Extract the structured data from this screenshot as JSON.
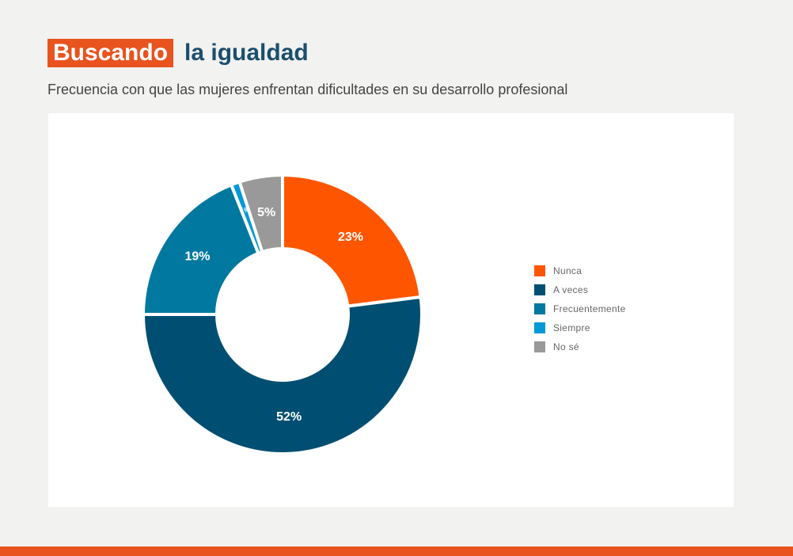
{
  "header": {
    "title_highlight": "Buscando",
    "title_rest": "la igualdad",
    "subtitle": "Frecuencia con que las mujeres enfrentan dificultades en su desarrollo profesional"
  },
  "chart_data": {
    "type": "donut",
    "title": "Frecuencia con que las mujeres enfrentan dificultades en su desarrollo profesional",
    "unit": "%",
    "legend_position": "right",
    "slices": [
      {
        "label": "Nunca",
        "value": 23,
        "display": "23%",
        "color": "#fe5600"
      },
      {
        "label": "A veces",
        "value": 52,
        "display": "52%",
        "color": "#004f72"
      },
      {
        "label": "Frecuentemente",
        "value": 19,
        "display": "19%",
        "color": "#0078a0"
      },
      {
        "label": "Siempre",
        "value": 1,
        "display": "1%",
        "color": "#0098d8"
      },
      {
        "label": "No sé",
        "value": 5,
        "display": "5%",
        "color": "#999999"
      }
    ]
  },
  "colors": {
    "accent": "#e8531e",
    "title": "#1b4e6e",
    "background": "#f2f2f0"
  }
}
